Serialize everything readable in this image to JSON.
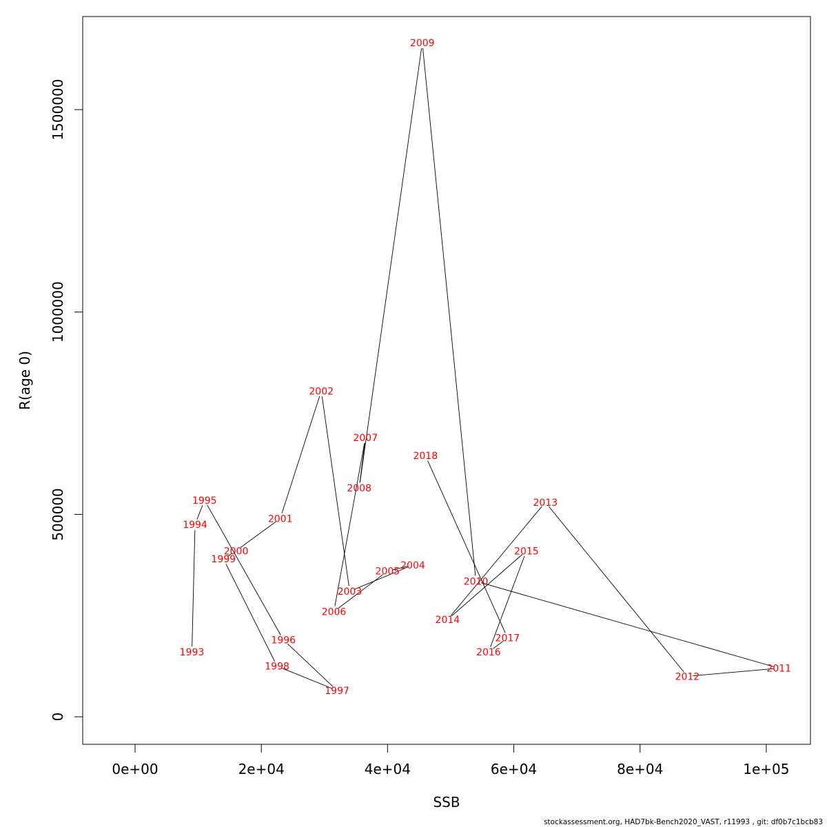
{
  "chart_data": {
    "type": "line",
    "xlabel": "SSB",
    "ylabel": "R(age 0)",
    "xlim": [
      -8300,
      107000
    ],
    "ylim": [
      -68000,
      1730000
    ],
    "xticks": [
      0,
      20000,
      40000,
      60000,
      80000,
      100000
    ],
    "xtick_labels": [
      "0e+00",
      "2e+04",
      "4e+04",
      "6e+04",
      "8e+04",
      "1e+05"
    ],
    "yticks": [
      0,
      500000,
      1000000,
      1500000
    ],
    "ytick_labels": [
      "0",
      "500000",
      "1000000",
      "1500000"
    ],
    "grid": false,
    "line_color": "#000000",
    "label_color": "#ff0000",
    "points": [
      {
        "year": "1993",
        "ssb": 9000,
        "r": 160000
      },
      {
        "year": "1994",
        "ssb": 9500,
        "r": 475000
      },
      {
        "year": "1995",
        "ssb": 11000,
        "r": 535000
      },
      {
        "year": "1996",
        "ssb": 23500,
        "r": 190000
      },
      {
        "year": "1997",
        "ssb": 32000,
        "r": 65000
      },
      {
        "year": "1998",
        "ssb": 22500,
        "r": 125000
      },
      {
        "year": "1999",
        "ssb": 14000,
        "r": 390000
      },
      {
        "year": "2000",
        "ssb": 16000,
        "r": 410000
      },
      {
        "year": "2001",
        "ssb": 23000,
        "r": 490000
      },
      {
        "year": "2002",
        "ssb": 29500,
        "r": 805000
      },
      {
        "year": "2003",
        "ssb": 34000,
        "r": 310000
      },
      {
        "year": "2004",
        "ssb": 44000,
        "r": 375000
      },
      {
        "year": "2005",
        "ssb": 40000,
        "r": 360000
      },
      {
        "year": "2006",
        "ssb": 31500,
        "r": 260000
      },
      {
        "year": "2007",
        "ssb": 36500,
        "r": 690000
      },
      {
        "year": "2008",
        "ssb": 35500,
        "r": 565000
      },
      {
        "year": "2009",
        "ssb": 45500,
        "r": 1665000
      },
      {
        "year": "2010",
        "ssb": 54000,
        "r": 335000
      },
      {
        "year": "2011",
        "ssb": 102000,
        "r": 120000
      },
      {
        "year": "2012",
        "ssb": 87500,
        "r": 100000
      },
      {
        "year": "2013",
        "ssb": 65000,
        "r": 530000
      },
      {
        "year": "2014",
        "ssb": 49500,
        "r": 240000
      },
      {
        "year": "2015",
        "ssb": 62000,
        "r": 410000
      },
      {
        "year": "2016",
        "ssb": 56000,
        "r": 160000
      },
      {
        "year": "2017",
        "ssb": 59000,
        "r": 195000
      },
      {
        "year": "2018",
        "ssb": 46000,
        "r": 645000
      }
    ]
  },
  "footer_text": "stockassessment.org, HAD7bk-Bench2020_VAST, r11993 , git: df0b7c1bcb83"
}
